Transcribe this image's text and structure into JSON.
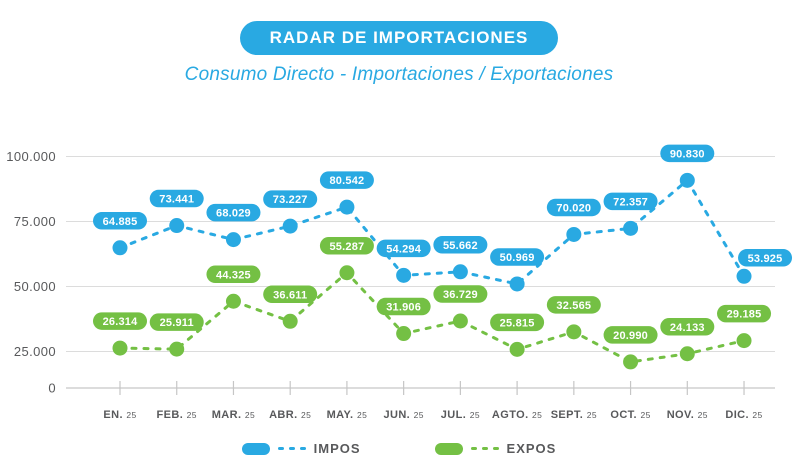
{
  "header": {
    "title": "RADAR DE IMPORTACIONES",
    "subtitle": "Consumo Directo - Importaciones / Exportaciones"
  },
  "colors": {
    "blue": "#29A9E2",
    "green": "#74C044",
    "axis_text": "#58595B",
    "gridline": "#DCDCDC",
    "axis_line": "#C6C6C6"
  },
  "chart_data": {
    "type": "line",
    "title": "RADAR DE IMPORTACIONES",
    "subtitle": "Consumo Directo - Importaciones / Exportaciones",
    "months": [
      "EN.",
      "FEB.",
      "MAR.",
      "ABR.",
      "MAY.",
      "JUN.",
      "JUL.",
      "AGTO.",
      "SEPT.",
      "OCT.",
      "NOV.",
      "DIC."
    ],
    "year_suffix": "25",
    "y_tick_labels": [
      "100.000",
      "75.000",
      "50.000",
      "25.000",
      "0"
    ],
    "y_tick_values": [
      100000,
      75000,
      50000,
      25000,
      0
    ],
    "ylim": [
      0,
      100000
    ],
    "grid": true,
    "line_style": "dashed",
    "point_labels": true,
    "legend_position": "bottom",
    "series": [
      {
        "name": "IMPOS",
        "color_key": "blue",
        "values": [
          64885,
          73441,
          68029,
          73227,
          80542,
          54294,
          55662,
          50969,
          70020,
          72357,
          90830,
          53925
        ],
        "labels": [
          "64.885",
          "73.441",
          "68.029",
          "73.227",
          "80.542",
          "54.294",
          "55.662",
          "50.969",
          "70.020",
          "72.357",
          "90.830",
          "53.925"
        ]
      },
      {
        "name": "EXPOS",
        "color_key": "green",
        "values": [
          26314,
          25911,
          44325,
          36611,
          55287,
          31906,
          36729,
          25815,
          32565,
          20990,
          24133,
          29185
        ],
        "labels": [
          "26.314",
          "25.911",
          "44.325",
          "36.611",
          "55.287",
          "31.906",
          "36.729",
          "25.815",
          "32.565",
          "20.990",
          "24.133",
          "29.185"
        ]
      }
    ]
  },
  "legend": {
    "items": [
      {
        "label": "IMPOS",
        "color_key": "blue"
      },
      {
        "label": "EXPOS",
        "color_key": "green"
      }
    ]
  }
}
